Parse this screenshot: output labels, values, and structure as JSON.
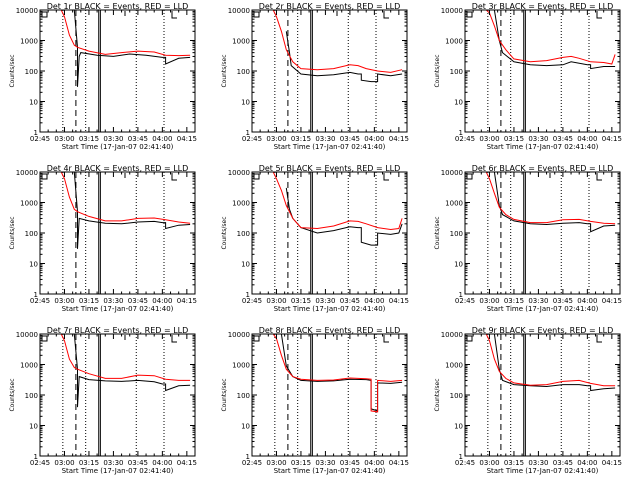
{
  "figure": {
    "ylabel": "Counts/sec",
    "xlabel": "Start Time (17-Jan-07 02:41:40)",
    "x_ticks": [
      "02:45",
      "03:00",
      "03:15",
      "03:30",
      "03:45",
      "04:00",
      "04:15"
    ],
    "y_ticks": [
      "1",
      "10",
      "100",
      "1000",
      "10000"
    ],
    "colors": {
      "events": "#000000",
      "lld": "#ff0000",
      "background": "#ffffff"
    }
  },
  "chart_data": [
    {
      "type": "line",
      "title": "Det 1r BLACK = Events, RED = LLD",
      "xlabel": "Start Time (17-Jan-07 02:41:40)",
      "ylabel": "Counts/sec",
      "ylim": [
        1,
        10000
      ],
      "yscale": "log",
      "x_ticks": [
        "02:45",
        "03:00",
        "03:15",
        "03:30",
        "03:45",
        "04:00",
        "04:15"
      ],
      "y_ticks": [
        "1",
        "10",
        "100",
        "1000",
        "10000"
      ],
      "vertical_markers": {
        "dotted": [
          "02:59",
          "03:13",
          "03:44",
          "04:01"
        ],
        "dashed": [
          "03:07"
        ],
        "solid": [
          "03:21",
          "03:22"
        ]
      },
      "series": [
        {
          "name": "Events",
          "color": "#000000",
          "x": [
            "03:06",
            "03:08",
            "03:08",
            "03:09",
            "03:10",
            "03:20",
            "03:30",
            "03:40",
            "03:50",
            "04:00",
            "04:02",
            "04:02",
            "04:10",
            "04:17"
          ],
          "values": [
            10000,
            600,
            30,
            300,
            400,
            330,
            300,
            360,
            330,
            280,
            280,
            170,
            260,
            280
          ]
        },
        {
          "name": "LLD",
          "color": "#ff0000",
          "x": [
            "02:58",
            "03:00",
            "03:03",
            "03:06",
            "03:08",
            "03:15",
            "03:25",
            "03:35",
            "03:45",
            "03:55",
            "04:02",
            "04:10",
            "04:17"
          ],
          "values": [
            10000,
            6000,
            1500,
            700,
            600,
            450,
            350,
            400,
            450,
            420,
            330,
            320,
            330
          ]
        }
      ]
    },
    {
      "type": "line",
      "title": "Det 2r BLACK = Events, RED = LLD",
      "xlabel": "Start Time (17-Jan-07 02:41:40)",
      "ylabel": "Counts/sec",
      "ylim": [
        1,
        10000
      ],
      "yscale": "log",
      "x_ticks": [
        "02:45",
        "03:00",
        "03:15",
        "03:30",
        "03:45",
        "04:00",
        "04:15"
      ],
      "y_ticks": [
        "1",
        "10",
        "100",
        "1000",
        "10000"
      ],
      "vertical_markers": {
        "dotted": [
          "02:59",
          "03:13",
          "03:44",
          "04:01"
        ],
        "dashed": [
          "03:07"
        ],
        "solid": [
          "03:21",
          "03:22"
        ]
      },
      "series": [
        {
          "name": "Events",
          "color": "#000000",
          "x": [
            "03:06",
            "03:08",
            "03:09",
            "03:15",
            "03:25",
            "03:35",
            "03:45",
            "03:50",
            "03:52",
            "03:52",
            "03:58",
            "04:02",
            "04:02",
            "04:10",
            "04:17"
          ],
          "values": [
            2000,
            400,
            150,
            80,
            70,
            75,
            90,
            80,
            80,
            50,
            45,
            45,
            80,
            70,
            80
          ]
        },
        {
          "name": "LLD",
          "color": "#ff0000",
          "x": [
            "02:58",
            "03:00",
            "03:03",
            "03:06",
            "03:10",
            "03:15",
            "03:25",
            "03:35",
            "03:45",
            "03:50",
            "03:55",
            "04:02",
            "04:10",
            "04:17"
          ],
          "values": [
            10000,
            6000,
            2000,
            500,
            200,
            120,
            110,
            120,
            160,
            150,
            120,
            100,
            90,
            110
          ]
        }
      ]
    },
    {
      "type": "line",
      "title": "Det 3r BLACK = Events, RED = LLD",
      "xlabel": "Start Time (17-Jan-07 02:41:40)",
      "ylabel": "Counts/sec",
      "ylim": [
        1,
        10000
      ],
      "yscale": "log",
      "x_ticks": [
        "02:45",
        "03:00",
        "03:15",
        "03:30",
        "03:45",
        "04:00",
        "04:15"
      ],
      "y_ticks": [
        "1",
        "10",
        "100",
        "1000",
        "10000"
      ],
      "vertical_markers": {
        "dotted": [
          "02:59",
          "03:13",
          "03:44",
          "04:01"
        ],
        "dashed": [
          "03:07"
        ],
        "solid": [
          "03:21",
          "03:22"
        ]
      },
      "series": [
        {
          "name": "Events",
          "color": "#000000",
          "x": [
            "03:03",
            "03:06",
            "03:08",
            "03:15",
            "03:25",
            "03:35",
            "03:45",
            "03:50",
            "04:00",
            "04:02",
            "04:02",
            "04:10",
            "04:17"
          ],
          "values": [
            10000,
            1000,
            400,
            200,
            160,
            150,
            160,
            200,
            160,
            160,
            120,
            140,
            140
          ]
        },
        {
          "name": "LLD",
          "color": "#ff0000",
          "x": [
            "02:58",
            "03:00",
            "03:03",
            "03:06",
            "03:10",
            "03:15",
            "03:25",
            "03:35",
            "03:45",
            "03:50",
            "03:55",
            "04:02",
            "04:10",
            "04:15",
            "04:17"
          ],
          "values": [
            10000,
            8000,
            3000,
            1000,
            500,
            250,
            200,
            220,
            280,
            300,
            260,
            200,
            190,
            170,
            350
          ]
        }
      ]
    },
    {
      "type": "line",
      "title": "Det 4r BLACK = Events, RED = LLD",
      "xlabel": "Start Time (17-Jan-07 02:41:40)",
      "ylabel": "Counts/sec",
      "ylim": [
        1,
        10000
      ],
      "yscale": "log",
      "x_ticks": [
        "02:45",
        "03:00",
        "03:15",
        "03:30",
        "03:45",
        "04:00",
        "04:15"
      ],
      "y_ticks": [
        "1",
        "10",
        "100",
        "1000",
        "10000"
      ],
      "vertical_markers": {
        "dotted": [
          "02:59",
          "03:13",
          "03:44",
          "04:01"
        ],
        "dashed": [
          "03:07"
        ],
        "solid": [
          "03:21",
          "03:22"
        ]
      },
      "series": [
        {
          "name": "Events",
          "color": "#000000",
          "x": [
            "03:06",
            "03:08",
            "03:08",
            "03:09",
            "03:15",
            "03:25",
            "03:35",
            "03:45",
            "03:55",
            "04:00",
            "04:02",
            "04:02",
            "04:10",
            "04:17"
          ],
          "values": [
            10000,
            500,
            30,
            300,
            250,
            210,
            200,
            230,
            240,
            220,
            220,
            140,
            180,
            190
          ]
        },
        {
          "name": "LLD",
          "color": "#ff0000",
          "x": [
            "02:58",
            "03:00",
            "03:03",
            "03:06",
            "03:08",
            "03:15",
            "03:25",
            "03:35",
            "03:45",
            "03:55",
            "04:02",
            "04:10",
            "04:17"
          ],
          "values": [
            10000,
            6000,
            1500,
            600,
            500,
            350,
            250,
            250,
            300,
            310,
            270,
            230,
            210
          ]
        }
      ]
    },
    {
      "type": "line",
      "title": "Det 5r BLACK = Events, RED = LLD",
      "xlabel": "Start Time (17-Jan-07 02:41:40)",
      "ylabel": "Counts/sec",
      "ylim": [
        1,
        10000
      ],
      "yscale": "log",
      "x_ticks": [
        "02:45",
        "03:00",
        "03:15",
        "03:30",
        "03:45",
        "04:00",
        "04:15"
      ],
      "y_ticks": [
        "1",
        "10",
        "100",
        "1000",
        "10000"
      ],
      "vertical_markers": {
        "dotted": [
          "02:59",
          "03:13",
          "03:44",
          "04:01"
        ],
        "dashed": [
          "03:07"
        ],
        "solid": [
          "03:21",
          "03:22"
        ]
      },
      "series": [
        {
          "name": "Events",
          "color": "#000000",
          "x": [
            "03:06",
            "03:08",
            "03:10",
            "03:15",
            "03:25",
            "03:35",
            "03:45",
            "03:50",
            "03:52",
            "03:52",
            "03:58",
            "04:02",
            "04:02",
            "04:10",
            "04:15",
            "04:17"
          ],
          "values": [
            3000,
            600,
            300,
            150,
            100,
            120,
            160,
            150,
            150,
            50,
            40,
            40,
            100,
            90,
            100,
            200
          ]
        },
        {
          "name": "LLD",
          "color": "#ff0000",
          "x": [
            "02:58",
            "03:00",
            "03:03",
            "03:06",
            "03:10",
            "03:15",
            "03:25",
            "03:35",
            "03:45",
            "03:50",
            "03:55",
            "04:02",
            "04:10",
            "04:15",
            "04:17"
          ],
          "values": [
            10000,
            6000,
            2500,
            800,
            300,
            150,
            140,
            170,
            250,
            240,
            200,
            150,
            130,
            140,
            300
          ]
        }
      ]
    },
    {
      "type": "line",
      "title": "Det 6r BLACK = Events, RED = LLD",
      "xlabel": "Start Time (17-Jan-07 02:41:40)",
      "ylabel": "Counts/sec",
      "ylim": [
        1,
        10000
      ],
      "yscale": "log",
      "x_ticks": [
        "02:45",
        "03:00",
        "03:15",
        "03:30",
        "03:45",
        "04:00",
        "04:15"
      ],
      "y_ticks": [
        "1",
        "10",
        "100",
        "1000",
        "10000"
      ],
      "vertical_markers": {
        "dotted": [
          "02:59",
          "03:13",
          "03:44",
          "04:01"
        ],
        "dashed": [
          "03:07"
        ],
        "solid": [
          "03:21",
          "03:22"
        ]
      },
      "series": [
        {
          "name": "Events",
          "color": "#000000",
          "x": [
            "03:03",
            "03:06",
            "03:08",
            "03:15",
            "03:25",
            "03:35",
            "03:45",
            "03:55",
            "04:00",
            "04:02",
            "04:02",
            "04:10",
            "04:17"
          ],
          "values": [
            10000,
            800,
            400,
            250,
            200,
            190,
            210,
            220,
            200,
            200,
            110,
            170,
            180
          ]
        },
        {
          "name": "LLD",
          "color": "#ff0000",
          "x": [
            "02:58",
            "03:00",
            "03:03",
            "03:06",
            "03:10",
            "03:15",
            "03:25",
            "03:35",
            "03:45",
            "03:55",
            "04:02",
            "04:10",
            "04:17"
          ],
          "values": [
            10000,
            6000,
            2000,
            700,
            400,
            280,
            220,
            220,
            270,
            280,
            240,
            210,
            200
          ]
        }
      ]
    },
    {
      "type": "line",
      "title": "Det 7r BLACK = Events, RED = LLD",
      "xlabel": "Start Time (17-Jan-07 02:41:40)",
      "ylabel": "Counts/sec",
      "ylim": [
        1,
        10000
      ],
      "yscale": "log",
      "x_ticks": [
        "02:45",
        "03:00",
        "03:15",
        "03:30",
        "03:45",
        "04:00",
        "04:15"
      ],
      "y_ticks": [
        "1",
        "10",
        "100",
        "1000",
        "10000"
      ],
      "vertical_markers": {
        "dotted": [
          "02:59",
          "03:13",
          "03:44",
          "04:01"
        ],
        "dashed": [
          "03:07"
        ],
        "solid": [
          "03:21",
          "03:22"
        ]
      },
      "series": [
        {
          "name": "Events",
          "color": "#000000",
          "x": [
            "03:06",
            "03:08",
            "03:08",
            "03:09",
            "03:15",
            "03:25",
            "03:35",
            "03:45",
            "03:55",
            "04:00",
            "04:02",
            "04:02",
            "04:10",
            "04:17"
          ],
          "values": [
            10000,
            700,
            40,
            400,
            320,
            290,
            280,
            300,
            270,
            230,
            230,
            140,
            200,
            210
          ]
        },
        {
          "name": "LLD",
          "color": "#ff0000",
          "x": [
            "02:58",
            "03:00",
            "03:03",
            "03:06",
            "03:08",
            "03:15",
            "03:25",
            "03:35",
            "03:45",
            "03:55",
            "04:02",
            "04:10",
            "04:17"
          ],
          "values": [
            10000,
            6000,
            1500,
            800,
            700,
            500,
            350,
            350,
            450,
            430,
            330,
            300,
            300
          ]
        }
      ]
    },
    {
      "type": "line",
      "title": "Det 8r BLACK = Events, RED = LLD",
      "xlabel": "Start Time (17-Jan-07 02:41:40)",
      "ylabel": "Counts/sec",
      "ylim": [
        1,
        10000
      ],
      "yscale": "log",
      "x_ticks": [
        "02:45",
        "03:00",
        "03:15",
        "03:30",
        "03:45",
        "04:00",
        "04:15"
      ],
      "y_ticks": [
        "1",
        "10",
        "100",
        "1000",
        "10000"
      ],
      "vertical_markers": {
        "dotted": [
          "02:59",
          "03:13",
          "03:44",
          "04:01"
        ],
        "dashed": [
          "03:07"
        ],
        "solid": [
          "03:21",
          "03:22"
        ]
      },
      "series": [
        {
          "name": "Events",
          "color": "#000000",
          "x": [
            "03:03",
            "03:06",
            "03:10",
            "03:15",
            "03:25",
            "03:35",
            "03:45",
            "03:55",
            "03:58",
            "03:58",
            "04:02",
            "04:02",
            "04:10",
            "04:17"
          ],
          "values": [
            10000,
            900,
            400,
            300,
            280,
            290,
            330,
            320,
            300,
            35,
            30,
            250,
            240,
            260
          ]
        },
        {
          "name": "LLD",
          "color": "#ff0000",
          "x": [
            "02:58",
            "03:00",
            "03:03",
            "03:06",
            "03:10",
            "03:15",
            "03:25",
            "03:35",
            "03:45",
            "03:55",
            "03:58",
            "03:58",
            "04:02",
            "04:02",
            "04:10",
            "04:17"
          ],
          "values": [
            10000,
            7000,
            2000,
            700,
            400,
            330,
            300,
            310,
            360,
            340,
            330,
            30,
            28,
            300,
            280,
            300
          ]
        }
      ]
    },
    {
      "type": "line",
      "title": "Det 9r BLACK = Events, RED = LLD",
      "xlabel": "Start Time (17-Jan-07 02:41:40)",
      "ylabel": "Counts/sec",
      "ylim": [
        1,
        10000
      ],
      "yscale": "log",
      "x_ticks": [
        "02:45",
        "03:00",
        "03:15",
        "03:30",
        "03:45",
        "04:00",
        "04:15"
      ],
      "y_ticks": [
        "1",
        "10",
        "100",
        "1000",
        "10000"
      ],
      "vertical_markers": {
        "dotted": [
          "02:59",
          "03:13",
          "03:44",
          "04:01"
        ],
        "dashed": [
          "03:07"
        ],
        "solid": [
          "03:21",
          "03:22"
        ]
      },
      "series": [
        {
          "name": "Events",
          "color": "#000000",
          "x": [
            "03:03",
            "03:06",
            "03:08",
            "03:15",
            "03:25",
            "03:35",
            "03:45",
            "03:55",
            "04:00",
            "04:02",
            "04:02",
            "04:10",
            "04:17"
          ],
          "values": [
            10000,
            700,
            300,
            220,
            200,
            190,
            220,
            220,
            200,
            200,
            140,
            160,
            170
          ]
        },
        {
          "name": "LLD",
          "color": "#ff0000",
          "x": [
            "02:58",
            "03:00",
            "03:03",
            "03:06",
            "03:10",
            "03:15",
            "03:25",
            "03:35",
            "03:45",
            "03:55",
            "04:02",
            "04:10",
            "04:17"
          ],
          "values": [
            10000,
            6000,
            1500,
            600,
            350,
            250,
            210,
            220,
            280,
            300,
            240,
            200,
            200
          ]
        }
      ]
    }
  ]
}
